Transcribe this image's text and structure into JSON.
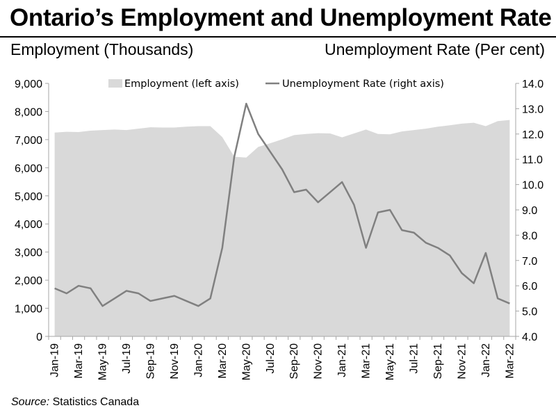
{
  "header": {
    "title": "Ontario’s Employment and Unemployment Rate",
    "left_axis_title": "Employment (Thousands)",
    "right_axis_title": "Unemployment Rate (Per cent)"
  },
  "footer": {
    "source_label": "Source:",
    "source_text": " Statistics Canada"
  },
  "chart_data": {
    "type": "area+line",
    "x_tick_labels": [
      "Jan-19",
      "Mar-19",
      "May-19",
      "Jul-19",
      "Sep-19",
      "Nov-19",
      "Jan-20",
      "Mar-20",
      "May-20",
      "Jul-20",
      "Sep-20",
      "Nov-20",
      "Jan-21",
      "Mar-21",
      "May-21",
      "Jul-21",
      "Sep-21",
      "Nov-21",
      "Jan-22",
      "Mar-22"
    ],
    "categories": [
      "Jan-19",
      "Feb-19",
      "Mar-19",
      "Apr-19",
      "May-19",
      "Jun-19",
      "Jul-19",
      "Aug-19",
      "Sep-19",
      "Oct-19",
      "Nov-19",
      "Dec-19",
      "Jan-20",
      "Feb-20",
      "Mar-20",
      "Apr-20",
      "May-20",
      "Jun-20",
      "Jul-20",
      "Aug-20",
      "Sep-20",
      "Oct-20",
      "Nov-20",
      "Dec-20",
      "Jan-21",
      "Feb-21",
      "Mar-21",
      "Apr-21",
      "May-21",
      "Jun-21",
      "Jul-21",
      "Aug-21",
      "Sep-21",
      "Oct-21",
      "Nov-21",
      "Dec-21",
      "Jan-22",
      "Feb-22",
      "Mar-22"
    ],
    "left_axis": {
      "ylim": [
        0,
        9000
      ],
      "ticks": [
        "0",
        "1,000",
        "2,000",
        "3,000",
        "4,000",
        "5,000",
        "6,000",
        "7,000",
        "8,000",
        "9,000"
      ],
      "tick_values": [
        0,
        1000,
        2000,
        3000,
        4000,
        5000,
        6000,
        7000,
        8000,
        9000
      ]
    },
    "right_axis": {
      "ylim": [
        4.0,
        14.0
      ],
      "ticks": [
        "4.0",
        "5.0",
        "6.0",
        "7.0",
        "8.0",
        "9.0",
        "10.0",
        "11.0",
        "12.0",
        "13.0",
        "14.0"
      ],
      "tick_values": [
        4,
        5,
        6,
        7,
        8,
        9,
        10,
        11,
        12,
        13,
        14
      ]
    },
    "series": [
      {
        "name": "Employment (left axis)",
        "type": "area",
        "axis": "left",
        "color": "#d9d9d9",
        "values": [
          7250,
          7280,
          7270,
          7320,
          7340,
          7360,
          7340,
          7390,
          7440,
          7430,
          7430,
          7460,
          7480,
          7480,
          7090,
          6390,
          6360,
          6740,
          6870,
          7010,
          7160,
          7200,
          7230,
          7220,
          7080,
          7220,
          7360,
          7200,
          7190,
          7290,
          7340,
          7390,
          7460,
          7510,
          7570,
          7600,
          7480,
          7660,
          7700
        ]
      },
      {
        "name": "Unemployment Rate (right axis)",
        "type": "line",
        "axis": "right",
        "color": "#808080",
        "values": [
          5.9,
          5.7,
          6.0,
          5.9,
          5.2,
          5.5,
          5.8,
          5.7,
          5.4,
          5.5,
          5.6,
          5.4,
          5.2,
          5.5,
          7.5,
          11.1,
          13.2,
          12.0,
          11.3,
          10.6,
          9.7,
          9.8,
          9.3,
          9.7,
          10.1,
          9.2,
          7.5,
          8.9,
          9.0,
          8.2,
          8.1,
          7.7,
          7.5,
          7.2,
          6.5,
          6.1,
          7.3,
          5.5,
          5.3
        ]
      }
    ],
    "legend_position": "top",
    "grid": false
  }
}
